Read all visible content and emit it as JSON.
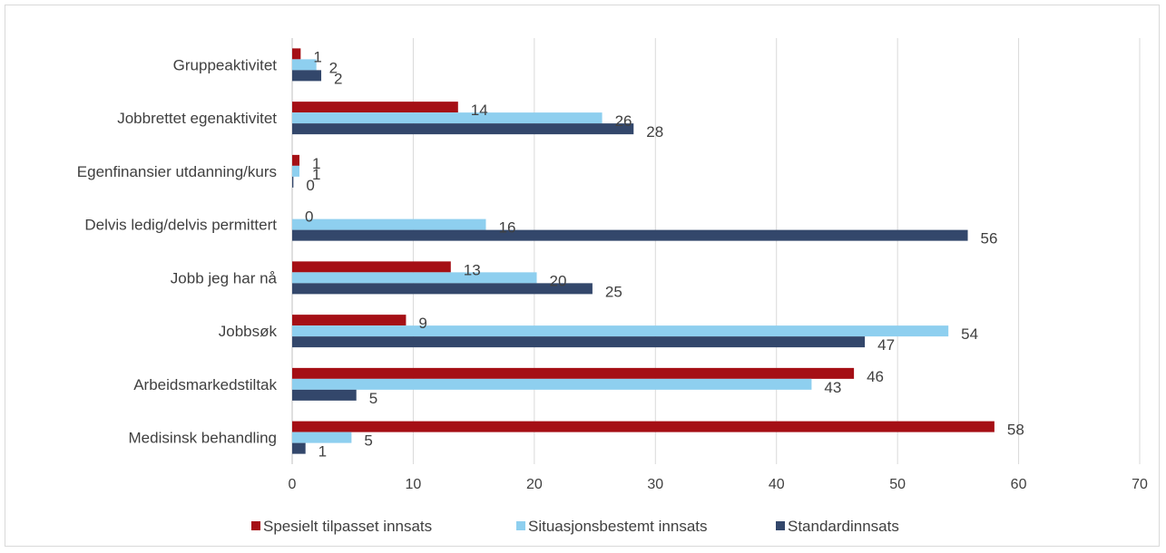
{
  "chart_data": {
    "type": "bar",
    "orientation": "horizontal",
    "categories": [
      "Gruppeaktivitet",
      "Jobbrettet egenaktivitet",
      "Egenfinansier utdanning/kurs",
      "Delvis ledig/delvis permittert",
      "Jobb jeg har nå",
      "Jobbsøk",
      "Arbeidsmarkedstiltak",
      "Medisinsk behandling"
    ],
    "series": [
      {
        "name": "Spesielt tilpasset innsats",
        "color": "#a50f15",
        "values": [
          0.7,
          13.7,
          0.6,
          0,
          13.1,
          9.4,
          46.4,
          58.0
        ],
        "labels": [
          "1",
          "14",
          "1",
          "0",
          "13",
          "9",
          "46",
          "58"
        ]
      },
      {
        "name": "Situasjonsbestemt innsats",
        "color": "#8ecfef",
        "values": [
          2.0,
          25.6,
          0.6,
          16.0,
          20.2,
          54.2,
          42.9,
          4.9
        ],
        "labels": [
          "2",
          "26",
          "1",
          "16",
          "20",
          "54",
          "43",
          "5"
        ]
      },
      {
        "name": "Standardinnsats",
        "color": "#33476b",
        "values": [
          2.4,
          28.2,
          0.1,
          55.8,
          24.8,
          47.3,
          5.3,
          1.1
        ],
        "labels": [
          "2",
          "28",
          "0",
          "56",
          "25",
          "47",
          "5",
          "1"
        ]
      }
    ],
    "x_ticks": [
      "0",
      "10",
      "20",
      "30",
      "40",
      "50",
      "60",
      "70"
    ],
    "xlim": [
      0,
      70
    ],
    "grid": true,
    "legend_position": "bottom"
  }
}
